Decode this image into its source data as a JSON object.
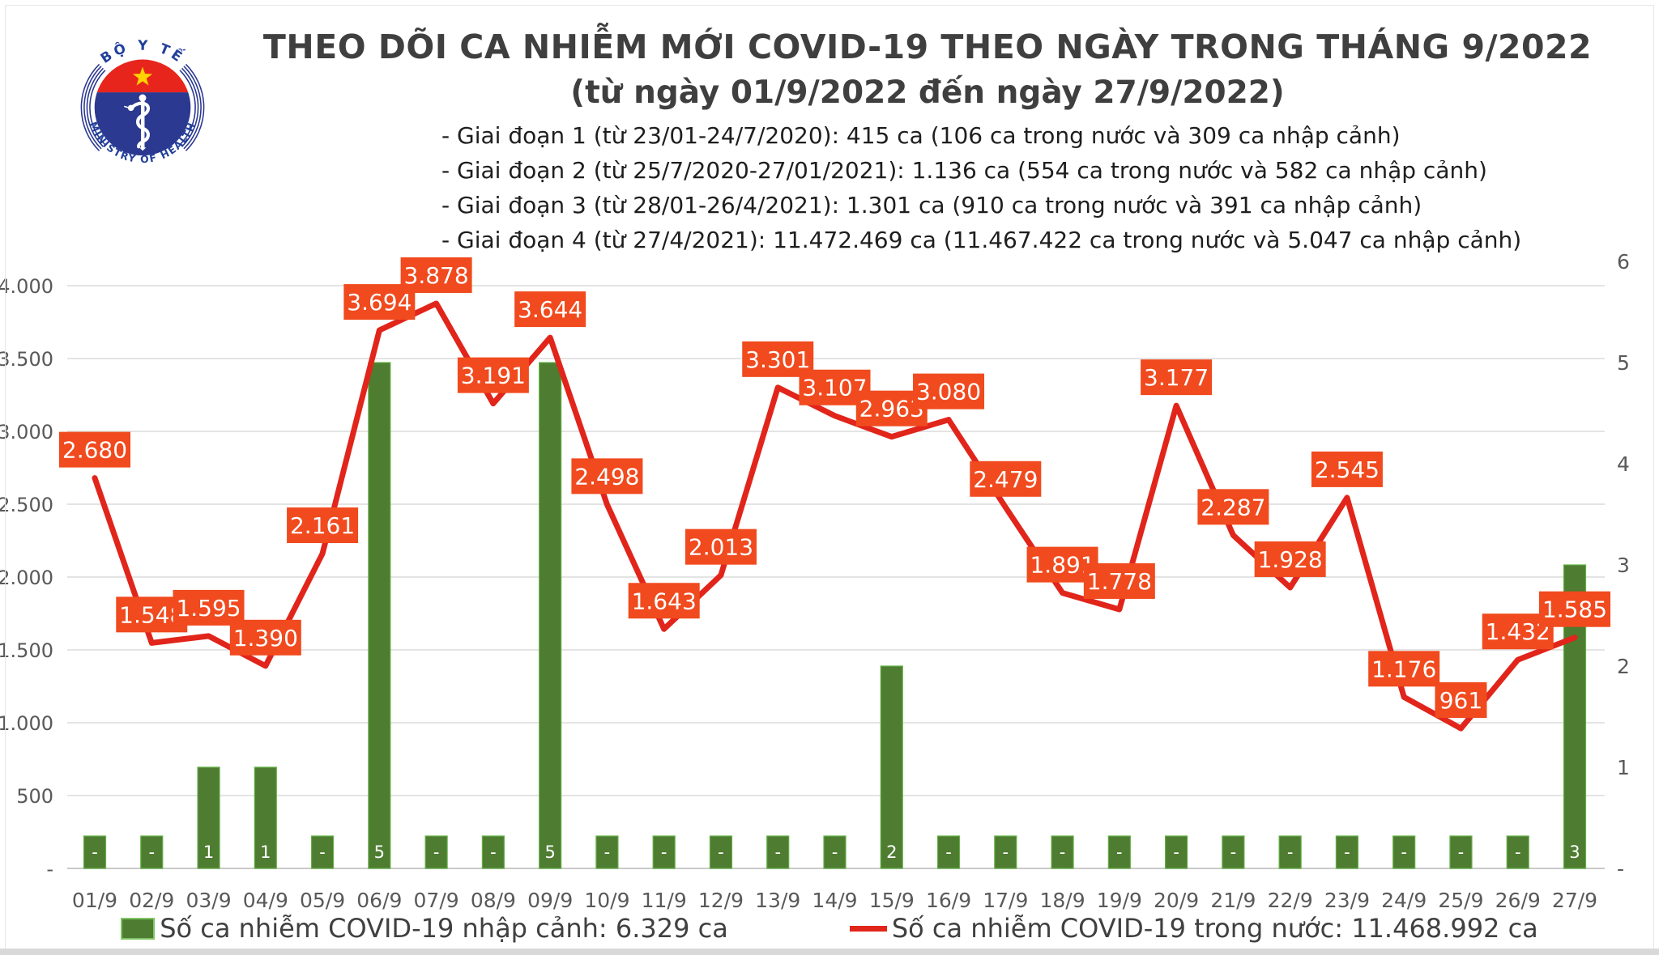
{
  "header": {
    "logo": {
      "top_text": "BỘ Y TẾ",
      "bottom_text": "MINISTRY OF HEALTH"
    },
    "title_line1": "THEO DÕI CA NHIỄM MỚI COVID-19 THEO NGÀY TRONG THÁNG 9/2022",
    "title_line2": "(từ ngày 01/9/2022 đến ngày 27/9/2022)",
    "phases": [
      "- Giai đoạn 1 (từ 23/01-24/7/2020): 415 ca (106 ca trong nước và 309 ca nhập cảnh)",
      "- Giai đoạn 2 (từ 25/7/2020-27/01/2021): 1.136 ca (554 ca trong nước và 582 ca nhập cảnh)",
      "- Giai đoạn 3 (từ 28/01-26/4/2021): 1.301 ca (910 ca trong nước và 391 ca nhập cảnh)",
      "- Giai đoạn 4 (từ 27/4/2021): 11.472.469 ca (11.467.422 ca trong nước và 5.047 ca nhập cảnh)"
    ]
  },
  "chart_data": {
    "type": "bar+line combo",
    "categories": [
      "01/9",
      "02/9",
      "03/9",
      "04/9",
      "05/9",
      "06/9",
      "07/9",
      "08/9",
      "09/9",
      "10/9",
      "11/9",
      "12/9",
      "13/9",
      "14/9",
      "15/9",
      "16/9",
      "17/9",
      "18/9",
      "19/9",
      "20/9",
      "21/9",
      "22/9",
      "23/9",
      "24/9",
      "25/9",
      "26/9",
      "27/9"
    ],
    "series": [
      {
        "name": "Số ca nhiễm COVID-19 nhập cảnh: 6.329 ca",
        "type": "bar",
        "axis": "right",
        "color": "#4e7c31",
        "values": [
          0,
          0,
          1,
          1,
          0,
          5,
          0,
          0,
          5,
          0,
          0,
          0,
          0,
          0,
          2,
          0,
          0,
          0,
          0,
          0,
          0,
          0,
          0,
          0,
          0,
          0,
          3
        ],
        "point_labels": [
          "-",
          "-",
          "1",
          "1",
          "-",
          "5",
          "-",
          "-",
          "5",
          "-",
          "-",
          "-",
          "-",
          "-",
          "2",
          "-",
          "-",
          "-",
          "-",
          "-",
          "-",
          "-",
          "-",
          "-",
          "-",
          "-",
          "3"
        ]
      },
      {
        "name": "Số ca nhiễm COVID-19 trong nước: 11.468.992 ca",
        "type": "line",
        "axis": "left",
        "color": "#e1251b",
        "label_box_color": "#f04a1e",
        "values": [
          2680,
          1548,
          1595,
          1390,
          2161,
          3694,
          3878,
          3191,
          3644,
          2498,
          1643,
          2013,
          3301,
          3107,
          2963,
          3080,
          2479,
          1891,
          1778,
          3177,
          2287,
          1928,
          2545,
          1176,
          961,
          1432,
          1585
        ],
        "point_labels": [
          "2.680",
          "1.548",
          "1.595",
          "1.390",
          "2.161",
          "3.694",
          "3.878",
          "3.191",
          "3.644",
          "2.498",
          "1.643",
          "2.013",
          "3.301",
          "3.107",
          "2.963",
          "3.080",
          "2.479",
          "1.891",
          "1.778",
          "3.177",
          "2.287",
          "1.928",
          "2.545",
          "1.176",
          "961",
          "1.432",
          "1.585"
        ]
      }
    ],
    "left_axis": {
      "tick_labels": [
        "-",
        "500",
        "1.000",
        "1.500",
        "2.000",
        "2.500",
        "3.000",
        "3.500",
        "4.000"
      ],
      "min": 0,
      "max": 4000
    },
    "right_axis": {
      "tick_labels": [
        "-",
        "1",
        "2",
        "3",
        "4",
        "5",
        "6"
      ],
      "min": 0,
      "max": 6
    },
    "grid": true,
    "legend_position": "bottom"
  }
}
